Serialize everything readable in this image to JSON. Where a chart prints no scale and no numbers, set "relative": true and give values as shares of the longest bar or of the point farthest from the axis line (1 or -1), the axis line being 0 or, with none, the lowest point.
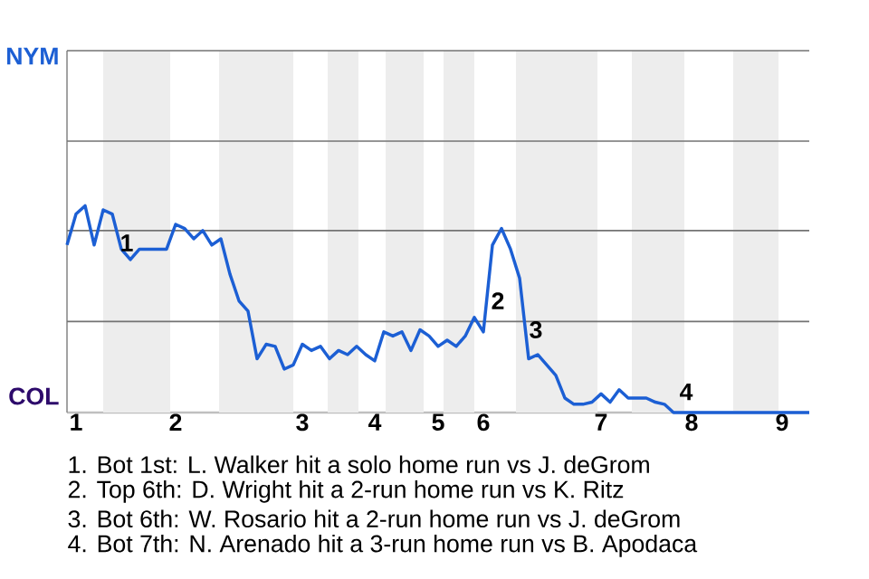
{
  "chart_data": {
    "type": "line",
    "relative": true,
    "categories": [
      null,
      "1",
      null,
      null,
      null,
      null,
      null,
      null,
      null,
      null,
      null,
      null,
      "2",
      null,
      null,
      null,
      null,
      null,
      null,
      null,
      null,
      null,
      null,
      null,
      null,
      null,
      "3",
      null,
      null,
      null,
      null,
      null,
      null,
      null,
      "4",
      null,
      null,
      null,
      null,
      null,
      null,
      "5",
      null,
      null,
      null,
      null,
      "6",
      null,
      null,
      null,
      null,
      null,
      null,
      null,
      null,
      null,
      null,
      null,
      null,
      "7",
      null,
      null,
      null,
      null,
      null,
      null,
      null,
      null,
      null,
      "8",
      null,
      null,
      null,
      null,
      null,
      null,
      null,
      null,
      null,
      "9",
      null,
      null,
      null
    ],
    "series": [
      {
        "color": "#1c5fd4",
        "values": [
          0.81,
          0.96,
          1,
          0.81,
          0.98,
          0.96,
          0.79,
          0.74,
          0.79,
          0.79,
          0.79,
          0.79,
          0.91,
          0.89,
          0.84,
          0.88,
          0.81,
          0.84,
          0.67,
          0.54,
          0.49,
          0.26,
          0.33,
          0.32,
          0.21,
          0.23,
          0.33,
          0.3,
          0.32,
          0.26,
          0.3,
          0.28,
          0.32,
          0.28,
          0.25,
          0.39,
          0.37,
          0.39,
          0.3,
          0.4,
          0.37,
          0.32,
          0.35,
          0.32,
          0.37,
          0.46,
          0.39,
          0.81,
          0.89,
          0.79,
          0.65,
          0.26,
          0.28,
          0.23,
          0.18,
          0.07,
          0.04,
          0.04,
          0.05,
          0.09,
          0.05,
          0.11,
          0.07,
          0.07,
          0.07,
          0.05,
          0.04,
          0,
          0,
          0,
          0,
          0,
          0,
          0,
          0,
          0,
          0,
          0,
          0,
          0,
          0,
          0,
          0
        ]
      }
    ],
    "ref_lines": [
      {
        "axis": "y",
        "value": 0.44,
        "color": "#737373"
      },
      {
        "axis": "y",
        "value": 0.88,
        "color": "#737373"
      }
    ],
    "annotations": [
      "NYM",
      "COL",
      "1",
      "2",
      "3",
      "4",
      "1. Bot 1st: L. Walker hit a solo home run vs J. deGrom",
      "2. Top 6th: D. Wright hit a 2-run home run vs K. Ritz",
      "3. Bot 6th: W. Rosario hit a 2-run home run vs J. deGrom",
      "4. Bot 7th: N. Arenado hit a 3-run home run vs B. Apodaca"
    ]
  }
}
